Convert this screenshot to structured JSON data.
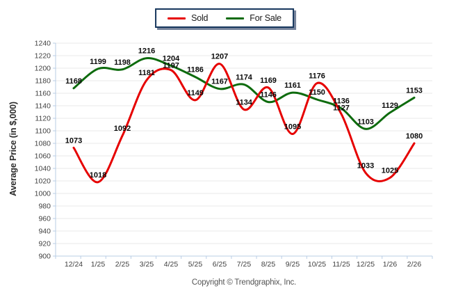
{
  "legend": {
    "items": [
      {
        "label": "Sold",
        "color": "#e60000"
      },
      {
        "label": "For Sale",
        "color": "#0d6b0d"
      }
    ]
  },
  "chart_data": {
    "type": "line",
    "title": "",
    "xlabel": "",
    "ylabel": "Average Price (in $,000)",
    "categories": [
      "12/24",
      "1/25",
      "2/25",
      "3/25",
      "4/25",
      "5/25",
      "6/25",
      "7/25",
      "8/25",
      "9/25",
      "10/25",
      "11/25",
      "12/25",
      "1/26",
      "2/26"
    ],
    "series": [
      {
        "name": "Sold",
        "color": "#e60000",
        "values": [
          1073,
          1018,
          1092,
          1181,
          1197,
          1149,
          1207,
          1134,
          1169,
          1095,
          1176,
          1127,
          1033,
          1025,
          1080
        ]
      },
      {
        "name": "For Sale",
        "color": "#0d6b0d",
        "values": [
          1168,
          1199,
          1198,
          1216,
          1204,
          1186,
          1167,
          1174,
          1146,
          1161,
          1150,
          1136,
          1103,
          1129,
          1153
        ]
      }
    ],
    "ylim": [
      900,
      1240
    ],
    "y_tick_step": 20,
    "y_ticks": [
      1240,
      1220,
      1200,
      1180,
      1160,
      1140,
      1120,
      1100,
      1080,
      1060,
      1040,
      1020,
      1000,
      980,
      960,
      940,
      920,
      900
    ],
    "grid": true,
    "smooth": true,
    "data_labels": true,
    "legend_position": "top-center"
  },
  "colors": {
    "axis_line": "#b9cde5",
    "grid_line": "#e9e9e9",
    "tick_text": "#3f3f3f",
    "point_label_text": "#0a0a0a"
  },
  "footer": {
    "copyright": "Copyright © Trendgraphix, Inc."
  }
}
